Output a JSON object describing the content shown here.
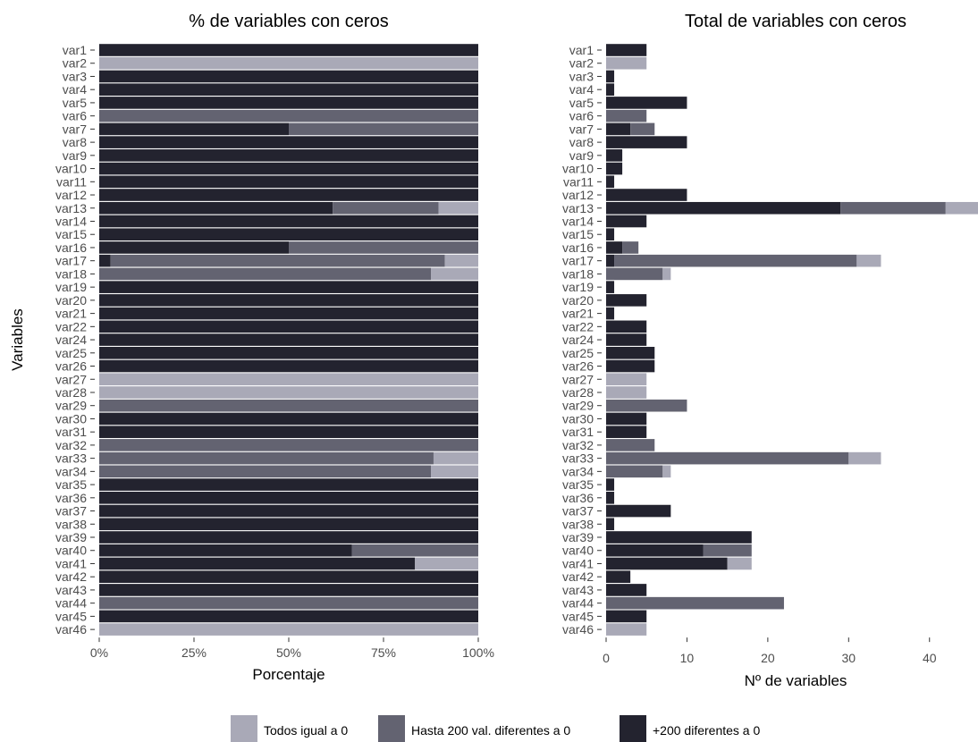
{
  "legend": {
    "items": [
      {
        "label": "Todos igual a 0",
        "color": "#a9a9b7"
      },
      {
        "label": "Hasta 200 val. diferentes a 0",
        "color": "#636371"
      },
      {
        "label": "+200 diferentes a 0",
        "color": "#23232f"
      }
    ]
  },
  "chart_data": [
    {
      "type": "bar",
      "orientation": "horizontal",
      "stacked": true,
      "title": "% de variables con ceros",
      "xlabel": "Porcentaje",
      "ylabel": "Variables",
      "xlim": [
        0,
        100
      ],
      "xticks": [
        "0%",
        "25%",
        "50%",
        "75%",
        "100%"
      ],
      "categories": [
        "var1",
        "var2",
        "var3",
        "var4",
        "var5",
        "var6",
        "var7",
        "var8",
        "var9",
        "var10",
        "var11",
        "var12",
        "var13",
        "var14",
        "var15",
        "var16",
        "var17",
        "var18",
        "var19",
        "var20",
        "var21",
        "var22",
        "var24",
        "var25",
        "var26",
        "var27",
        "var28",
        "var29",
        "var30",
        "var31",
        "var32",
        "var33",
        "var34",
        "var35",
        "var36",
        "var37",
        "var38",
        "var39",
        "var40",
        "var41",
        "var42",
        "var43",
        "var44",
        "var45",
        "var46"
      ],
      "series": [
        {
          "name": "+200 diferentes a 0",
          "values": [
            100,
            0,
            100,
            100,
            100,
            0,
            50,
            100,
            100,
            100,
            100,
            100,
            61.6,
            100,
            100,
            50,
            3,
            0,
            100,
            100,
            100,
            100,
            100,
            100,
            100,
            0,
            0,
            0,
            100,
            100,
            0,
            0,
            0,
            100,
            100,
            100,
            100,
            100,
            66.7,
            83.3,
            100,
            100,
            0,
            100,
            0
          ]
        },
        {
          "name": "Hasta 200 val. diferentes a 0",
          "values": [
            0,
            0,
            0,
            0,
            0,
            100,
            50,
            0,
            0,
            0,
            0,
            0,
            27.9,
            0,
            0,
            50,
            88.2,
            87.5,
            0,
            0,
            0,
            0,
            0,
            0,
            0,
            0,
            0,
            100,
            0,
            0,
            100,
            88.2,
            87.5,
            0,
            0,
            0,
            0,
            0,
            33.3,
            0,
            0,
            0,
            100,
            0,
            0
          ]
        },
        {
          "name": "Todos igual a 0",
          "values": [
            0,
            100,
            0,
            0,
            0,
            0,
            0,
            0,
            0,
            0,
            0,
            0,
            10.5,
            0,
            0,
            0,
            8.8,
            12.5,
            0,
            0,
            0,
            0,
            0,
            0,
            0,
            100,
            100,
            0,
            0,
            0,
            0,
            11.8,
            12.5,
            0,
            0,
            0,
            0,
            0,
            0,
            16.7,
            0,
            0,
            0,
            0,
            100
          ]
        }
      ],
      "grid": false
    },
    {
      "type": "bar",
      "orientation": "horizontal",
      "stacked": true,
      "title": "Total de variables con ceros",
      "xlabel": "Nº de variables",
      "ylabel": "",
      "xlim": [
        0,
        46
      ],
      "xticks": [
        "0",
        "10",
        "20",
        "30",
        "40"
      ],
      "categories": [
        "var1",
        "var2",
        "var3",
        "var4",
        "var5",
        "var6",
        "var7",
        "var8",
        "var9",
        "var10",
        "var11",
        "var12",
        "var13",
        "var14",
        "var15",
        "var16",
        "var17",
        "var18",
        "var19",
        "var20",
        "var21",
        "var22",
        "var24",
        "var25",
        "var26",
        "var27",
        "var28",
        "var29",
        "var30",
        "var31",
        "var32",
        "var33",
        "var34",
        "var35",
        "var36",
        "var37",
        "var38",
        "var39",
        "var40",
        "var41",
        "var42",
        "var43",
        "var44",
        "var45",
        "var46"
      ],
      "series": [
        {
          "name": "+200 diferentes a 0",
          "values": [
            5,
            0,
            1,
            1,
            10,
            0,
            3,
            10,
            2,
            2,
            1,
            10,
            29,
            5,
            1,
            2,
            1,
            0,
            1,
            5,
            1,
            5,
            5,
            6,
            6,
            0,
            0,
            0,
            5,
            5,
            0,
            0,
            0,
            1,
            1,
            8,
            1,
            18,
            12,
            15,
            3,
            5,
            0,
            5,
            0
          ]
        },
        {
          "name": "Hasta 200 val. diferentes a 0",
          "values": [
            0,
            0,
            0,
            0,
            0,
            5,
            3,
            0,
            0,
            0,
            0,
            0,
            13,
            0,
            0,
            2,
            30,
            7,
            0,
            0,
            0,
            0,
            0,
            0,
            0,
            0,
            0,
            10,
            0,
            0,
            6,
            30,
            7,
            0,
            0,
            0,
            0,
            0,
            6,
            0,
            0,
            0,
            22,
            0,
            0
          ]
        },
        {
          "name": "Todos igual a 0",
          "values": [
            0,
            5,
            0,
            0,
            0,
            0,
            0,
            0,
            0,
            0,
            0,
            0,
            4,
            0,
            0,
            0,
            3,
            1,
            0,
            0,
            0,
            0,
            0,
            0,
            0,
            5,
            5,
            0,
            0,
            0,
            0,
            4,
            1,
            0,
            0,
            0,
            0,
            0,
            0,
            3,
            0,
            0,
            0,
            0,
            5
          ]
        }
      ],
      "grid": false
    }
  ]
}
